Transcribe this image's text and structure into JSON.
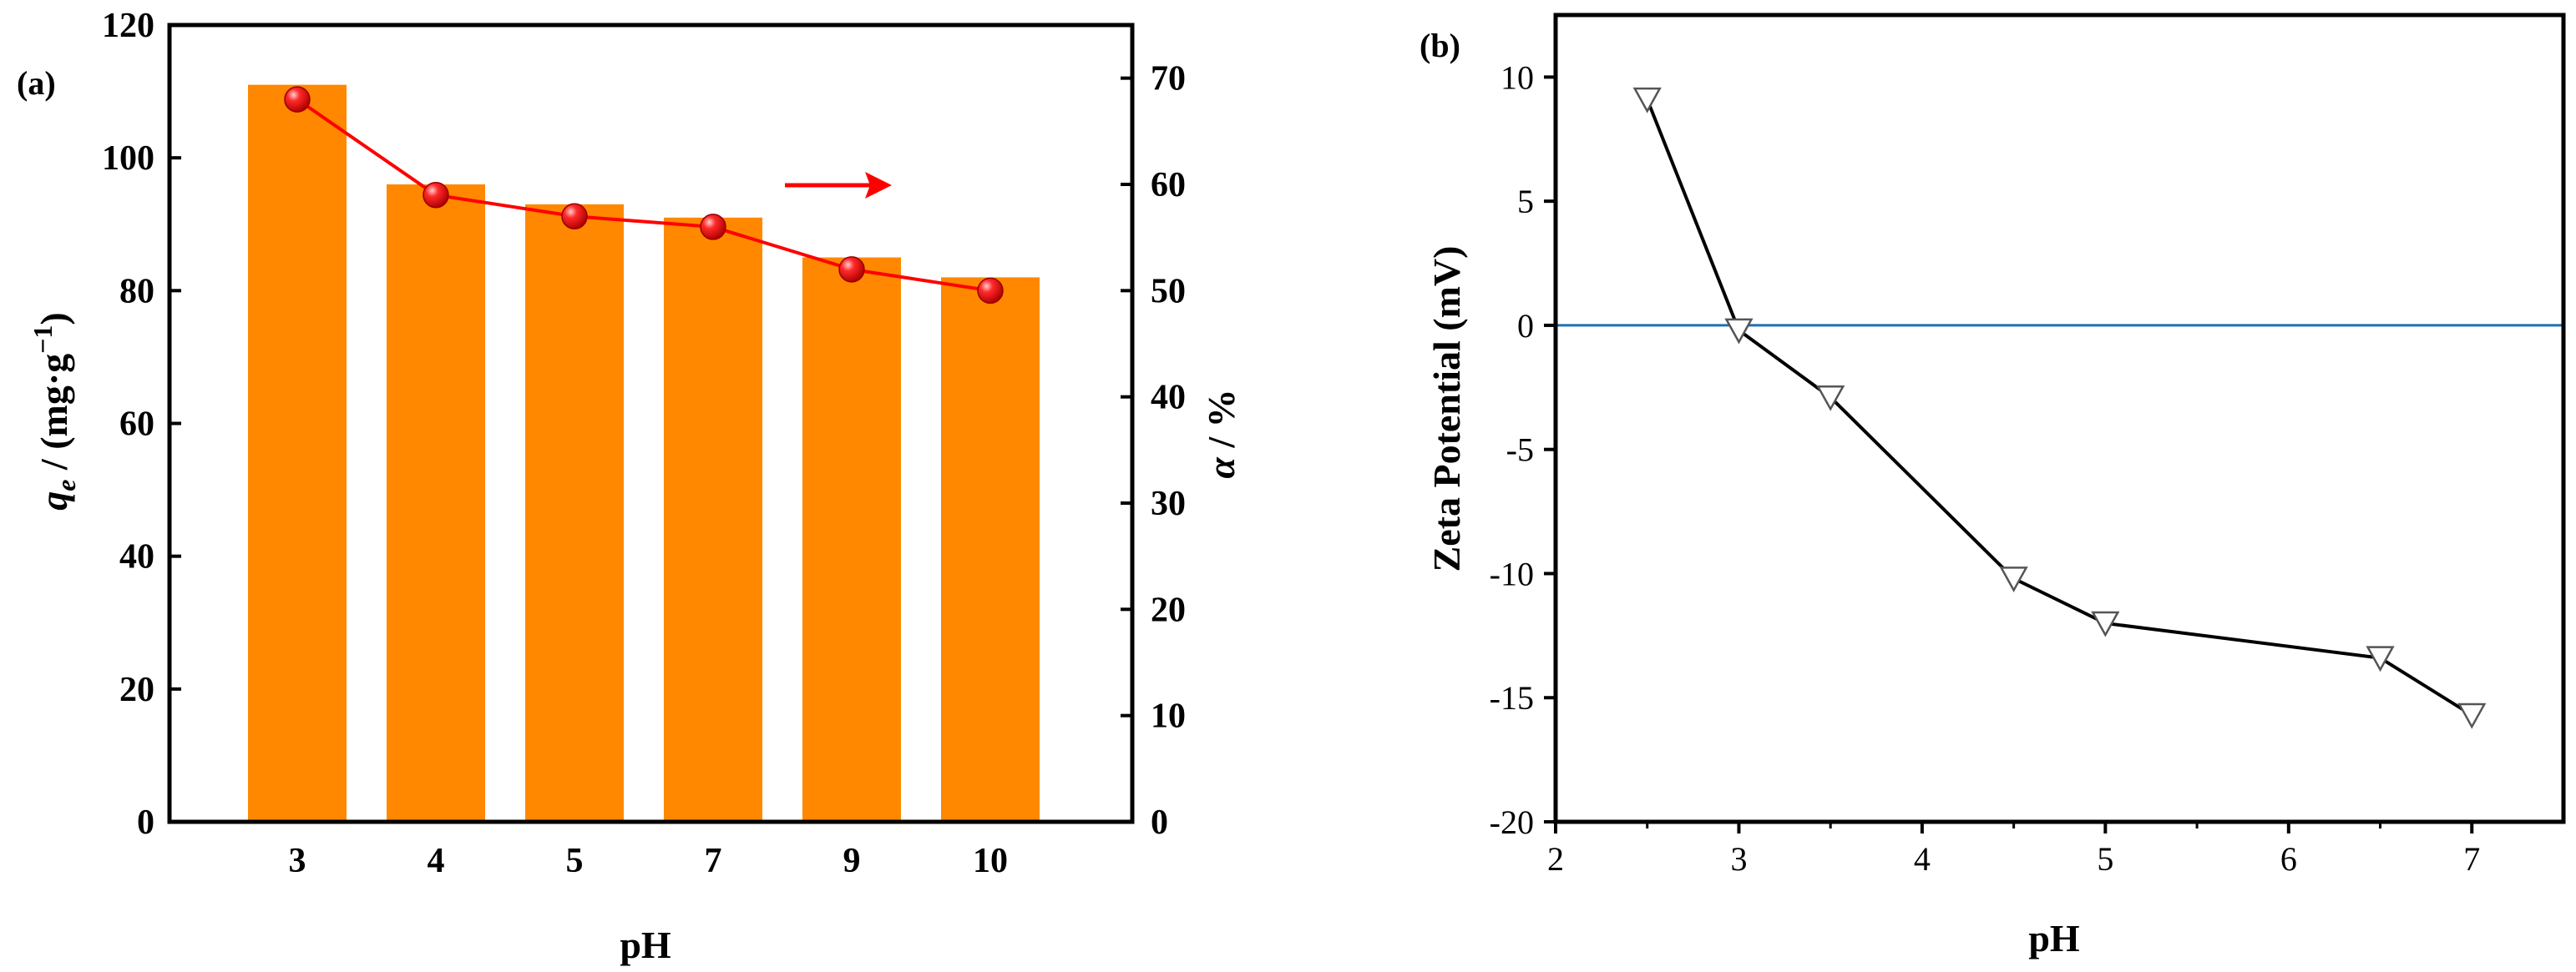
{
  "chart_data": [
    {
      "panel_label": "(a)",
      "type": "bar",
      "categories": [
        "3",
        "4",
        "5",
        "7",
        "9",
        "10"
      ],
      "xlabel": "pH",
      "ylabel_left": {
        "symbol": "q",
        "subscript": "e",
        "text": " / (mg·g",
        "superscript": "−1",
        "close": ")"
      },
      "ylim_left": [
        0,
        120
      ],
      "yticks_left": [
        0,
        20,
        40,
        60,
        80,
        100,
        120
      ],
      "ylabel_right": {
        "symbol": "α",
        "text": " / %"
      },
      "ylim_right": [
        0,
        75
      ],
      "yticks_right": [
        0,
        10,
        20,
        30,
        40,
        50,
        60,
        70
      ],
      "series": [
        {
          "name": "q_e",
          "axis": "left",
          "type": "bar",
          "color": "#FF8800",
          "values": [
            111,
            96,
            93,
            91,
            85,
            82
          ]
        },
        {
          "name": "α",
          "axis": "right",
          "type": "line",
          "color": "#FF0000",
          "marker": "sphere",
          "values": [
            68,
            59,
            57,
            56,
            52,
            50
          ]
        }
      ],
      "annotation": {
        "type": "arrow",
        "direction": "right",
        "color": "#FF0000",
        "meaning": "line series uses right axis"
      }
    },
    {
      "panel_label": "(b)",
      "type": "line",
      "xlabel": "pH",
      "ylabel": "Zeta Potential (mV)",
      "xlim": [
        2,
        7.5
      ],
      "xticks": [
        2,
        3,
        4,
        5,
        6,
        7
      ],
      "ylim": [
        -20,
        12.5
      ],
      "yticks": [
        -20,
        -15,
        -10,
        -5,
        0,
        5,
        10
      ],
      "series": [
        {
          "name": "Zeta potential",
          "color": "#000000",
          "marker": "triangle-down-open",
          "x": [
            2.5,
            3,
            3.5,
            4.5,
            5,
            6.5,
            7
          ],
          "y": [
            9.1,
            -0.2,
            -2.9,
            -10.2,
            -12,
            -13.4,
            -15.7
          ]
        }
      ],
      "reference_line": {
        "y": 0,
        "color": "#1F6FB2"
      }
    }
  ]
}
